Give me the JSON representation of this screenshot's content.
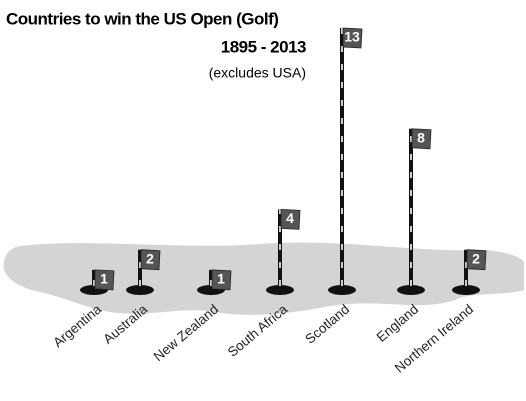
{
  "chart_data": {
    "type": "flag",
    "title": "Countries to win the US Open (Golf)",
    "subtitle": "1895 - 2013",
    "note": "(excludes USA)",
    "categories": [
      "Argentina",
      "Australia",
      "New Zealand",
      "South Africa",
      "Scotland",
      "England",
      "Northern Ireland"
    ],
    "values": [
      1,
      2,
      1,
      4,
      13,
      8,
      2
    ],
    "color": "#555555"
  }
}
